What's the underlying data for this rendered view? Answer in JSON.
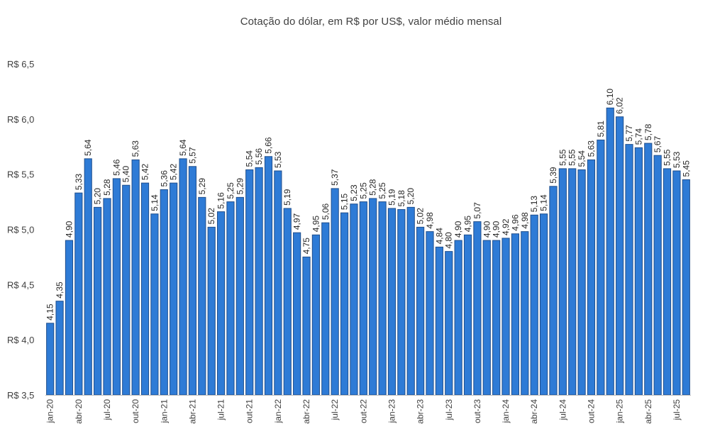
{
  "chart_data": {
    "type": "bar",
    "title": "Cotação do dólar, em R$ por US$, valor médio mensal",
    "xlabel": "",
    "ylabel": "",
    "ylim": [
      3.5,
      6.5
    ],
    "yticks": [
      3.5,
      4.0,
      4.5,
      5.0,
      5.5,
      6.0,
      6.5
    ],
    "ytick_labels": [
      "R$ 3,5",
      "R$ 4,0",
      "R$ 4,5",
      "R$ 5,0",
      "R$ 5,5",
      "R$ 6,0",
      "R$ 6,5"
    ],
    "grid": false,
    "legend": "none",
    "bar_color": "#2e7bd6",
    "categories": [
      "jan-20",
      "fev-20",
      "mar-20",
      "abr-20",
      "mai-20",
      "jun-20",
      "jul-20",
      "ago-20",
      "set-20",
      "out-20",
      "nov-20",
      "dez-20",
      "jan-21",
      "fev-21",
      "mar-21",
      "abr-21",
      "mai-21",
      "jun-21",
      "jul-21",
      "ago-21",
      "set-21",
      "out-21",
      "nov-21",
      "dez-21",
      "jan-22",
      "fev-22",
      "mar-22",
      "abr-22",
      "mai-22",
      "jun-22",
      "jul-22",
      "ago-22",
      "set-22",
      "out-22",
      "nov-22",
      "dez-22",
      "jan-23",
      "fev-23",
      "mar-23",
      "abr-23",
      "mai-23",
      "jun-23",
      "jul-23",
      "ago-23",
      "set-23",
      "out-23",
      "nov-23",
      "dez-23",
      "jan-24",
      "fev-24",
      "mar-24",
      "abr-24",
      "mai-24",
      "jun-24",
      "jul-24",
      "ago-24",
      "set-24",
      "out-24",
      "nov-24",
      "dez-24",
      "jan-25",
      "fev-25",
      "mar-25",
      "abr-25",
      "mai-25",
      "jun-25",
      "jul-25",
      "ago-25"
    ],
    "shown_tick_labels": [
      "jan-20",
      "abr-20",
      "jul-20",
      "out-20",
      "jan-21",
      "abr-21",
      "jul-21",
      "out-21",
      "jan-22",
      "abr-22",
      "jul-22",
      "out-22",
      "jan-23",
      "abr-23",
      "jul-23",
      "out-23",
      "jan-24",
      "abr-24",
      "jul-24",
      "out-24",
      "jan-25",
      "abr-25",
      "jul-25"
    ],
    "values": [
      4.15,
      4.35,
      4.9,
      5.33,
      5.64,
      5.2,
      5.28,
      5.46,
      5.4,
      5.63,
      5.42,
      5.14,
      5.36,
      5.42,
      5.64,
      5.57,
      5.29,
      5.02,
      5.16,
      5.25,
      5.29,
      5.54,
      5.56,
      5.66,
      5.53,
      5.19,
      4.97,
      4.75,
      4.95,
      5.06,
      5.37,
      5.15,
      5.23,
      5.25,
      5.28,
      5.25,
      5.19,
      5.18,
      5.2,
      5.02,
      4.98,
      4.84,
      4.8,
      4.9,
      4.95,
      5.07,
      4.9,
      4.9,
      4.92,
      4.96,
      4.98,
      5.13,
      5.14,
      5.39,
      5.55,
      5.55,
      5.54,
      5.63,
      5.81,
      6.1,
      6.02,
      5.77,
      5.74,
      5.78,
      5.67,
      5.55,
      5.53,
      5.45
    ],
    "value_labels": [
      "4,15",
      "4,35",
      "4,90",
      "5,33",
      "5,64",
      "5,20",
      "5,28",
      "5,46",
      "5,40",
      "5,63",
      "5,42",
      "5,14",
      "5,36",
      "5,42",
      "5,64",
      "5,57",
      "5,29",
      "5,02",
      "5,16",
      "5,25",
      "5,29",
      "5,54",
      "5,56",
      "5,66",
      "5,53",
      "5,19",
      "4,97",
      "4,75",
      "4,95",
      "5,06",
      "5,37",
      "5,15",
      "5,23",
      "5,25",
      "5,28",
      "5,25",
      "5,19",
      "5,18",
      "5,20",
      "5,02",
      "4,98",
      "4,84",
      "4,80",
      "4,90",
      "4,95",
      "5,07",
      "4,90",
      "4,90",
      "4,92",
      "4,96",
      "4,98",
      "5,13",
      "5,14",
      "5,39",
      "5,55",
      "5,55",
      "5,54",
      "5,63",
      "5,81",
      "6,10",
      "6,02",
      "5,77",
      "5,74",
      "5,78",
      "5,67",
      "5,55",
      "5,53",
      "5,45"
    ]
  }
}
